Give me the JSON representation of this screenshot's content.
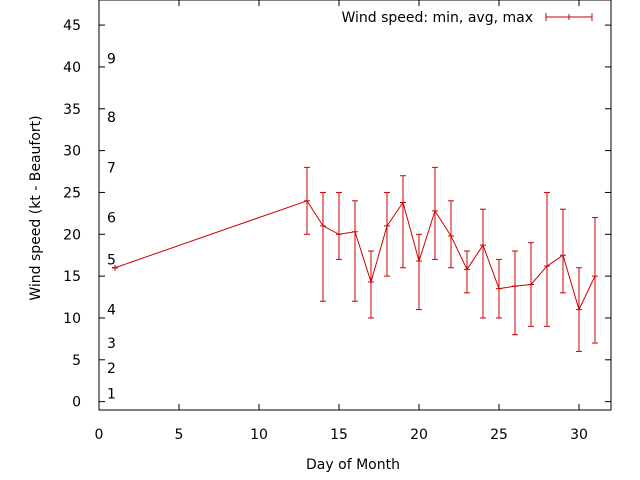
{
  "chart_data": {
    "type": "line",
    "title": "",
    "xlabel": "Day of Month",
    "ylabel": "Wind speed (kt - Beaufort)",
    "xlim": [
      0,
      32
    ],
    "ylim": [
      -1,
      48
    ],
    "xticks": [
      0,
      5,
      10,
      15,
      20,
      25,
      30
    ],
    "yticks": [
      0,
      5,
      10,
      15,
      20,
      25,
      30,
      35,
      40,
      45
    ],
    "beaufort_labels": [
      {
        "value": 1,
        "label": "1"
      },
      {
        "value": 2,
        "label": "2"
      },
      {
        "value": 3,
        "label": "3"
      },
      {
        "value": 4,
        "label": "4"
      },
      {
        "value": 5,
        "label": "5"
      },
      {
        "value": 6,
        "label": "6"
      },
      {
        "value": 7,
        "label": "7"
      },
      {
        "value": 8,
        "label": "8"
      },
      {
        "value": 9,
        "label": "9"
      }
    ],
    "beaufort_label_positions": [
      1,
      4,
      7,
      11,
      17,
      22,
      28,
      34,
      41
    ],
    "legend": {
      "position": "top-right"
    },
    "grid": false,
    "color": "#cc0000",
    "series": [
      {
        "name": "Wind speed: min, avg, max",
        "x": [
          1,
          13,
          14,
          15,
          16,
          17,
          18,
          19,
          20,
          21,
          22,
          23,
          24,
          25,
          26,
          27,
          28,
          29,
          30,
          31
        ],
        "avg": [
          16,
          24,
          21,
          20,
          20.3,
          14.3,
          21,
          23.8,
          16.8,
          22.8,
          19.8,
          15.8,
          18.7,
          13.5,
          13.8,
          14,
          16.2,
          17.5,
          11,
          15
        ],
        "min": [
          16,
          20,
          12,
          17,
          12,
          10,
          15,
          16,
          11,
          17,
          16,
          13,
          10,
          10,
          8,
          9,
          9,
          13,
          6,
          7
        ],
        "max": [
          16,
          28,
          25,
          25,
          24,
          18,
          25,
          27,
          20,
          28,
          24,
          18,
          23,
          17,
          18,
          19,
          25,
          23,
          16,
          22
        ]
      }
    ]
  }
}
